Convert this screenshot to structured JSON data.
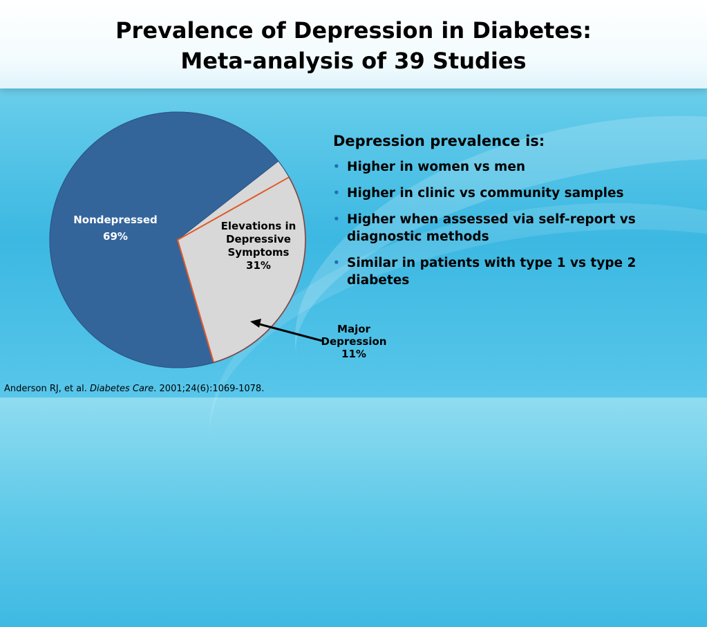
{
  "title": {
    "line1": "Prevalence of Depression in Diabetes:",
    "line2": "Meta-analysis of 39 Studies"
  },
  "chart_data": {
    "type": "pie",
    "title": "",
    "slices": [
      {
        "label": "Nondepressed",
        "value": 69,
        "value_label": "69%",
        "color": "#34659a"
      },
      {
        "label": "Elevations in Depressive Symptoms",
        "value": 31,
        "value_label": "31%",
        "color": "#d8d8d8"
      }
    ],
    "sub_slice": {
      "label": "Major Depression",
      "value": 11,
      "value_label": "11%",
      "outline_color": "#e05a2a",
      "within": "Elevations in Depressive Symptoms"
    },
    "label_lines": {
      "nondepressed": [
        "Nondepressed",
        "69%"
      ],
      "elevations": [
        "Elevations in",
        "Depressive",
        "Symptoms",
        "31%"
      ],
      "major": [
        "Major",
        "Depression",
        "11%"
      ]
    }
  },
  "bullets": {
    "heading": "Depression prevalence is:",
    "items": [
      {
        "lines": [
          "Higher in women vs men"
        ]
      },
      {
        "lines": [
          "Higher in clinic vs community samples"
        ]
      },
      {
        "lines": [
          "Higher when assessed via self-report vs",
          "diagnostic methods"
        ]
      },
      {
        "lines": [
          "Similar in patients with type 1 vs type 2",
          "diabetes"
        ]
      }
    ]
  },
  "citation": {
    "authors": "Anderson RJ, et al. ",
    "journal": "Diabetes Care",
    "details": ". 2001;24(6):1069-1078."
  },
  "colors": {
    "pie_main": "#34659a",
    "pie_light": "#d8d8d8",
    "sub_outline": "#e05a2a",
    "bullet_dot": "#1f6fb8"
  }
}
